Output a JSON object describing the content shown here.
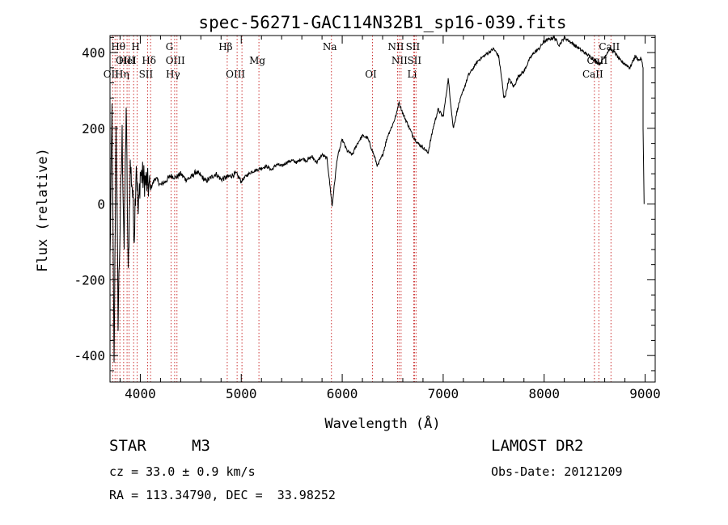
{
  "chart_data": {
    "type": "line",
    "title": "spec-56271-GAC114N32B1_sp16-039.fits",
    "xlabel": "Wavelength (Å)",
    "ylabel": "Flux (relative)",
    "xlim": [
      3700,
      9100
    ],
    "ylim": [
      -470,
      445
    ],
    "xticks": [
      4000,
      5000,
      6000,
      7000,
      8000,
      9000
    ],
    "yticks": [
      -400,
      -200,
      0,
      200,
      400
    ],
    "grid": false,
    "legend": "none",
    "colors": {
      "spectrum": "#000000",
      "line_markers": "#cc3333"
    },
    "series": [
      {
        "x": [
          3700,
          3720,
          3740,
          3760,
          3780,
          3800,
          3820,
          3840,
          3860,
          3880,
          3900,
          3920,
          3940,
          3960,
          3980,
          4000,
          4050,
          4100,
          4150,
          4200,
          4250,
          4300,
          4350,
          4400,
          4450,
          4500,
          4550,
          4600,
          4650,
          4700,
          4750,
          4800,
          4850,
          4900,
          4950,
          5000,
          5050,
          5100,
          5150,
          5200,
          5250,
          5300,
          5350,
          5400,
          5450,
          5500,
          5550,
          5600,
          5650,
          5700,
          5750,
          5800,
          5850,
          5900,
          5950,
          6000,
          6050,
          6100,
          6150,
          6200,
          6250,
          6300,
          6350,
          6400,
          6450,
          6500,
          6540,
          6560,
          6580,
          6600,
          6650,
          6700,
          6750,
          6800,
          6850,
          6900,
          6950,
          7000,
          7050,
          7100,
          7150,
          7200,
          7250,
          7300,
          7350,
          7400,
          7450,
          7500,
          7550,
          7580,
          7600,
          7620,
          7650,
          7700,
          7750,
          7800,
          7850,
          7900,
          7950,
          8000,
          8050,
          8100,
          8150,
          8200,
          8250,
          8300,
          8350,
          8400,
          8450,
          8500,
          8550,
          8600,
          8650,
          8700,
          8750,
          8800,
          8850,
          8900,
          8940,
          8960,
          8980
        ],
        "y": [
          -150,
          250,
          -440,
          230,
          -300,
          -50,
          180,
          -120,
          260,
          -200,
          100,
          50,
          -80,
          120,
          -30,
          80,
          60,
          40,
          70,
          50,
          60,
          75,
          70,
          80,
          65,
          70,
          85,
          75,
          60,
          70,
          80,
          65,
          70,
          75,
          80,
          60,
          75,
          85,
          90,
          95,
          100,
          90,
          105,
          100,
          110,
          115,
          110,
          120,
          115,
          125,
          110,
          130,
          120,
          -5,
          120,
          170,
          140,
          130,
          160,
          180,
          175,
          140,
          100,
          130,
          180,
          210,
          240,
          270,
          255,
          240,
          210,
          180,
          160,
          150,
          135,
          200,
          250,
          230,
          330,
          200,
          260,
          300,
          340,
          360,
          380,
          390,
          400,
          410,
          390,
          330,
          280,
          290,
          330,
          310,
          340,
          350,
          380,
          400,
          410,
          430,
          435,
          440,
          420,
          440,
          430,
          420,
          410,
          400,
          390,
          380,
          370,
          390,
          410,
          400,
          380,
          370,
          360,
          390,
          380,
          385,
          360
        ]
      }
    ],
    "line_labels": [
      {
        "text": "Hθ",
        "wavelength": 3798
      },
      {
        "text": "OII",
        "wavelength": 3727
      },
      {
        "text": "OIII",
        "wavelength": 3869
      },
      {
        "text": "Hη",
        "wavelength": 3835
      },
      {
        "text": "HeI",
        "wavelength": 3889
      },
      {
        "text": "H",
        "wavelength": 3969
      },
      {
        "text": "Hδ",
        "wavelength": 4102
      },
      {
        "text": "SII",
        "wavelength": 4072
      },
      {
        "text": "G",
        "wavelength": 4305
      },
      {
        "text": "OIII",
        "wavelength": 4363
      },
      {
        "text": "Hγ",
        "wavelength": 4340
      },
      {
        "text": "Hβ",
        "wavelength": 4861
      },
      {
        "text": "OIII",
        "wavelength": 4959
      },
      {
        "text": "Mg",
        "wavelength": 5175
      },
      {
        "text": "Na",
        "wavelength": 5893
      },
      {
        "text": "OI",
        "wavelength": 6300
      },
      {
        "text": "NII",
        "wavelength": 6548
      },
      {
        "text": "NII",
        "wavelength": 6583
      },
      {
        "text": "SII",
        "wavelength": 6716
      },
      {
        "text": "SII",
        "wavelength": 6731
      },
      {
        "text": "Li",
        "wavelength": 6708
      },
      {
        "text": "CaII",
        "wavelength": 8542
      },
      {
        "text": "CaII",
        "wavelength": 8662
      },
      {
        "text": "CaII",
        "wavelength": 8498
      }
    ],
    "marker_lines": [
      3727,
      3750,
      3771,
      3798,
      3835,
      3869,
      3889,
      3934,
      3969,
      4072,
      4102,
      4305,
      4340,
      4363,
      4861,
      4959,
      5007,
      5175,
      5893,
      6300,
      6548,
      6563,
      6583,
      6708,
      6716,
      6731,
      8498,
      8542,
      8662
    ]
  },
  "info": {
    "object_class": "STAR",
    "subclass": "M3",
    "cz": "cz = 33.0 ± 0.9 km/s",
    "coords": "RA = 113.34790, DEC =  33.98252",
    "survey": "LAMOST DR2",
    "obs_date": "Obs-Date: 20121209"
  }
}
